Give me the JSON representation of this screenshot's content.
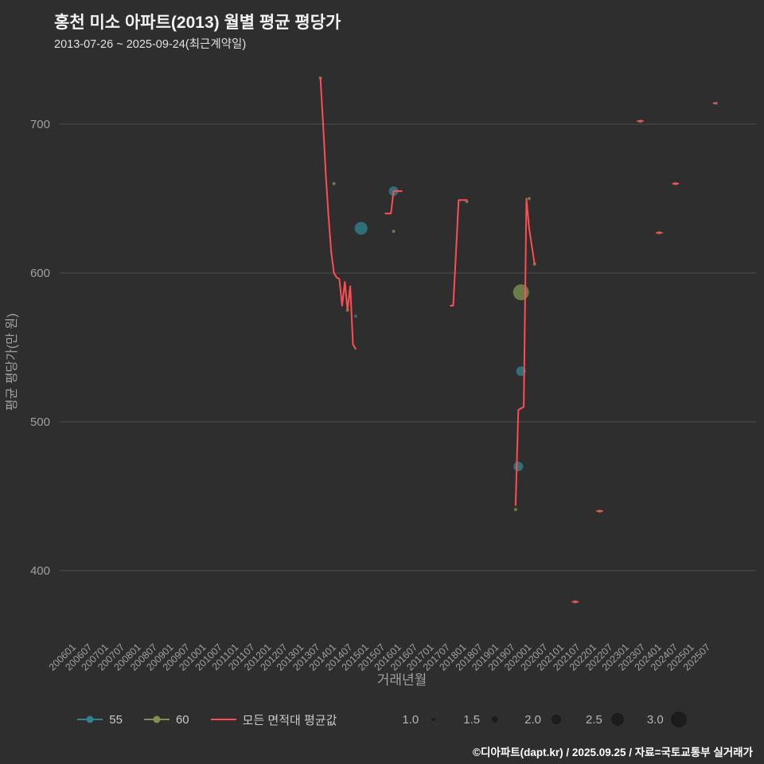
{
  "header": {
    "title": "홍천 미소 아파트(2013) 월별 평균 평당가",
    "subtitle": "2013-07-26 ~ 2025-09-24(최근계약일)"
  },
  "footer": {
    "credit": "©디아파트(dapt.kr) / 2025.09.25 / 자료=국토교통부 실거래가"
  },
  "colors": {
    "background": "#2e2e2e",
    "grid": "#4d4d4d",
    "axis_text": "#a0a0a0",
    "red": "#ff4d52",
    "teal": "#2e8290",
    "green": "#7d9150",
    "size_dot": "#1c1c1c"
  },
  "chart_data": {
    "type": "scatter",
    "title": "홍천 미소 아파트(2013) 월별 평균 평당가",
    "xlabel": "거래년월",
    "ylabel": "평균 평당가(만 원)",
    "ylim": [
      360,
      745
    ],
    "yticks": [
      400,
      500,
      600,
      700
    ],
    "grid": "horizontal-only",
    "legend_position": "bottom",
    "xticks": [
      "200601",
      "200607",
      "200701",
      "200707",
      "200801",
      "200807",
      "200901",
      "200907",
      "201001",
      "201007",
      "201101",
      "201107",
      "201201",
      "201207",
      "201301",
      "201307",
      "201401",
      "201407",
      "201501",
      "201507",
      "201601",
      "201607",
      "201701",
      "201707",
      "201801",
      "201807",
      "201901",
      "201907",
      "202001",
      "202007",
      "202101",
      "202107",
      "202201",
      "202207",
      "202301",
      "202307",
      "202401",
      "202407",
      "202501",
      "202507"
    ],
    "series": [
      {
        "name": "55",
        "type": "scatter",
        "color": "teal",
        "points": [
          {
            "ym": "201408",
            "y": 571,
            "s": 1.0
          },
          {
            "ym": "201410",
            "y": 630,
            "s": 2.5
          },
          {
            "ym": "201510",
            "y": 655,
            "s": 2.0
          },
          {
            "ym": "201908",
            "y": 470,
            "s": 2.0
          },
          {
            "ym": "201909",
            "y": 534,
            "s": 2.0
          },
          {
            "ym": "202509",
            "y": 714,
            "s": 1.0
          }
        ]
      },
      {
        "name": "60",
        "type": "scatter",
        "color": "green",
        "points": [
          {
            "ym": "201307",
            "y": 731,
            "s": 1.0
          },
          {
            "ym": "201312",
            "y": 660,
            "s": 1.0
          },
          {
            "ym": "201405",
            "y": 575,
            "s": 1.0
          },
          {
            "ym": "201510",
            "y": 628,
            "s": 1.0
          },
          {
            "ym": "201801",
            "y": 648,
            "s": 1.0
          },
          {
            "ym": "201907",
            "y": 441,
            "s": 1.0
          },
          {
            "ym": "201909",
            "y": 587,
            "s": 3.0
          },
          {
            "ym": "201912",
            "y": 650,
            "s": 1.0
          },
          {
            "ym": "202002",
            "y": 606,
            "s": 1.0
          },
          {
            "ym": "202105",
            "y": 379,
            "s": 1.0
          },
          {
            "ym": "202202",
            "y": 440,
            "s": 1.0
          },
          {
            "ym": "202305",
            "y": 702,
            "s": 1.0
          },
          {
            "ym": "202312",
            "y": 627,
            "s": 1.0
          },
          {
            "ym": "202406",
            "y": 660,
            "s": 1.0
          }
        ]
      },
      {
        "name": "모든 면적대 평균값",
        "type": "line",
        "color": "red",
        "segments": [
          [
            [
              "201307",
              731
            ],
            [
              "201308",
              700
            ],
            [
              "201309",
              666
            ],
            [
              "201310",
              638
            ],
            [
              "201311",
              614
            ],
            [
              "201312",
              600
            ],
            [
              "201401",
              597
            ],
            [
              "201402",
              596
            ],
            [
              "201403",
              578
            ],
            [
              "201404",
              594
            ],
            [
              "201405",
              575
            ],
            [
              "201406",
              591
            ],
            [
              "201407",
              552
            ],
            [
              "201408",
              549
            ]
          ],
          [
            [
              "201507",
              640
            ],
            [
              "201509",
              640
            ],
            [
              "201510",
              655
            ],
            [
              "201601",
              655
            ]
          ],
          [
            [
              "201707",
              578
            ],
            [
              "201708",
              578
            ],
            [
              "201709",
              613
            ],
            [
              "201710",
              649
            ],
            [
              "201801",
              649
            ]
          ],
          [
            [
              "201907",
              444
            ],
            [
              "201908",
              508
            ],
            [
              "201910",
              510
            ],
            [
              "201911",
              650
            ],
            [
              "201912",
              630
            ],
            [
              "202002",
              606
            ]
          ],
          [
            [
              "202104",
              379
            ],
            [
              "202106",
              379
            ]
          ],
          [
            [
              "202201",
              440
            ],
            [
              "202203",
              440
            ]
          ],
          [
            [
              "202304",
              702
            ],
            [
              "202306",
              702
            ]
          ],
          [
            [
              "202311",
              627
            ],
            [
              "202401",
              627
            ]
          ],
          [
            [
              "202405",
              660
            ],
            [
              "202407",
              660
            ]
          ],
          [
            [
              "202508",
              714
            ],
            [
              "202509",
              714
            ]
          ]
        ]
      }
    ]
  },
  "legend": {
    "items": [
      {
        "label": "55",
        "color": "teal",
        "marker": true
      },
      {
        "label": "60",
        "color": "green",
        "marker": true
      },
      {
        "label": "모든 면적대 평균값",
        "color": "red",
        "marker": false
      }
    ],
    "sizes": [
      {
        "label": "1.0",
        "s": 1.0
      },
      {
        "label": "1.5",
        "s": 1.5
      },
      {
        "label": "2.0",
        "s": 2.0
      },
      {
        "label": "2.5",
        "s": 2.5
      },
      {
        "label": "3.0",
        "s": 3.0
      }
    ]
  }
}
